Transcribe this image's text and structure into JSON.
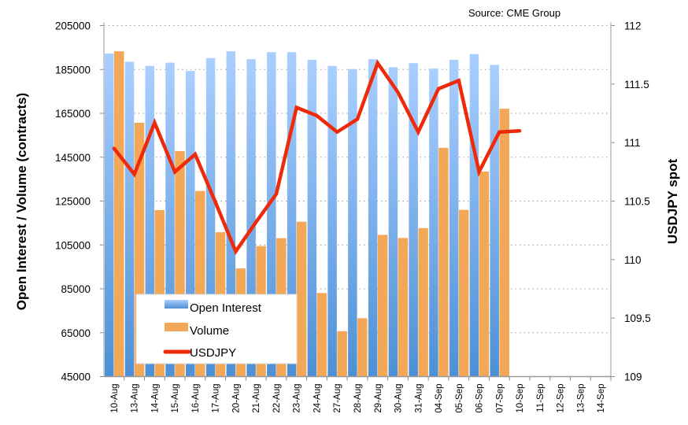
{
  "chart_data": {
    "type": "bar+line",
    "source": "Source: CME Group",
    "ylabel_left": "Open Interest / Volume (contracts)",
    "ylabel_right": "USDJPY spot",
    "ylim_left": [
      45000,
      205000
    ],
    "yticks_left": [
      "205000",
      "185000",
      "165000",
      "145000",
      "125000",
      "105000",
      "85000",
      "65000",
      "45000"
    ],
    "ylim_right": [
      109,
      112
    ],
    "yticks_right": [
      "112",
      "111.5",
      "111",
      "110.5",
      "110",
      "109.5",
      "109"
    ],
    "grid": true,
    "legend_placement": "bottom-left",
    "categories": [
      "10-Aug",
      "13-Aug",
      "14-Aug",
      "15-Aug",
      "16-Aug",
      "17-Aug",
      "20-Aug",
      "21-Aug",
      "22-Aug",
      "23-Aug",
      "24-Aug",
      "27-Aug",
      "28-Aug",
      "29-Aug",
      "30-Aug",
      "31-Aug",
      "04-Sep",
      "05-Sep",
      "06-Sep",
      "07-Sep",
      "10-Sep",
      "11-Sep",
      "12-Sep",
      "13-Sep",
      "14-Sep"
    ],
    "series": [
      {
        "name": "Open Interest",
        "axis": "left",
        "kind": "bar",
        "color": "#5b9bd5",
        "values": [
          192300,
          188500,
          186600,
          188100,
          184300,
          190200,
          193300,
          189700,
          192900,
          192900,
          189400,
          186600,
          185200,
          189700,
          186000,
          187900,
          185400,
          189400,
          192000,
          187100,
          null,
          null,
          null,
          null,
          null
        ]
      },
      {
        "name": "Volume",
        "axis": "left",
        "kind": "bar",
        "color": "#f3a857",
        "values": [
          193300,
          160700,
          120900,
          147800,
          129600,
          110800,
          94300,
          104500,
          108100,
          115600,
          83100,
          65700,
          71600,
          109600,
          108200,
          112700,
          149300,
          121000,
          138500,
          167100,
          null,
          null,
          null,
          null,
          null
        ]
      },
      {
        "name": "USDJPY",
        "axis": "right",
        "kind": "line",
        "color": "#ee2a0b",
        "values": [
          110.95,
          110.73,
          111.17,
          110.75,
          110.9,
          110.49,
          110.07,
          110.32,
          110.56,
          111.3,
          111.23,
          111.09,
          111.2,
          111.68,
          111.43,
          111.09,
          111.46,
          111.53,
          110.75,
          111.09,
          111.1,
          null,
          null,
          null,
          null
        ]
      }
    ]
  }
}
